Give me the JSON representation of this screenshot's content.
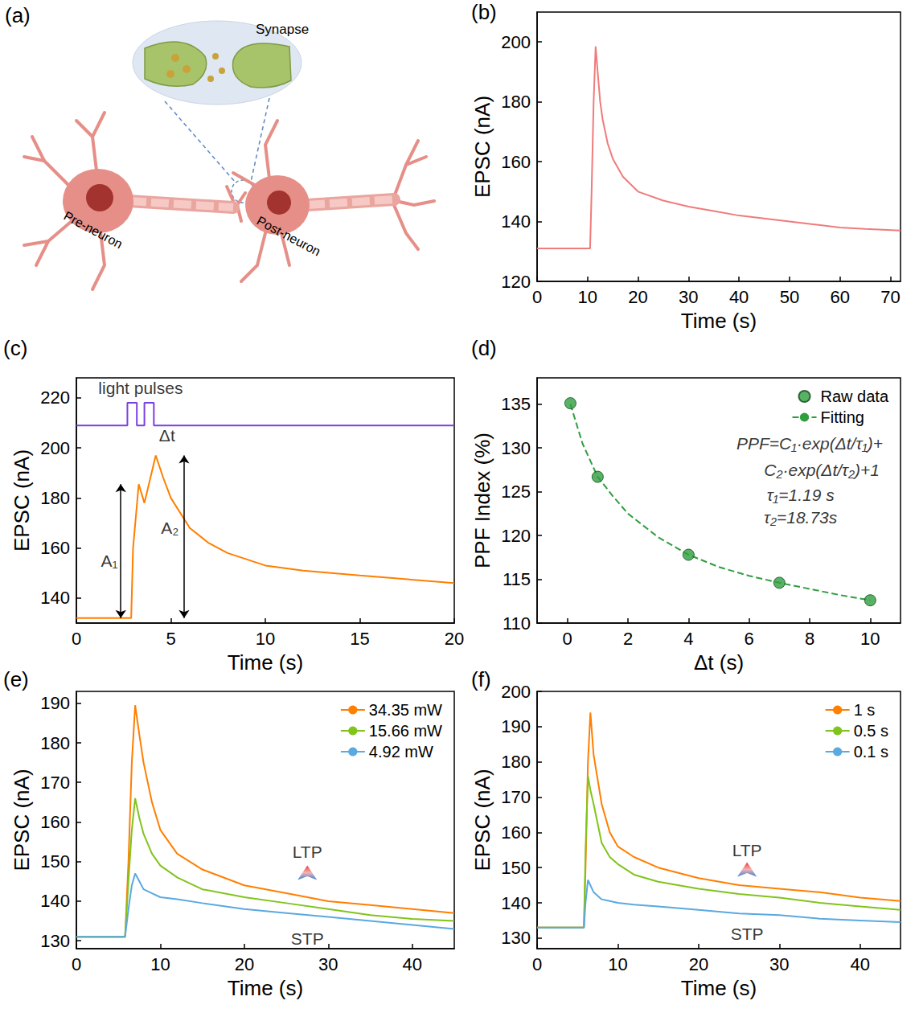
{
  "diagram": {
    "panel_label": "(a)",
    "labels": {
      "synapse": "Synapse",
      "pre": "Pre-neuron",
      "post": "Post-neuron"
    }
  },
  "chart_data": [
    {
      "panel_label": "(b)",
      "type": "line",
      "x_label": "Time (s)",
      "y_label": "EPSC (nA)",
      "xlim": [
        0,
        72
      ],
      "xticks": [
        0,
        10,
        20,
        30,
        40,
        50,
        60,
        70
      ],
      "ylim": [
        120,
        210
      ],
      "yticks": [
        120,
        140,
        160,
        180,
        200
      ],
      "grid": false,
      "series": [
        {
          "color": "#f07b7b",
          "x": [
            0,
            5,
            10,
            10.5,
            10.8,
            11.2,
            11.6,
            12,
            12.5,
            13,
            14,
            15,
            17,
            20,
            25,
            30,
            35,
            40,
            45,
            50,
            55,
            60,
            65,
            72
          ],
          "values": [
            131,
            131,
            131,
            131,
            150,
            180,
            198.5,
            190,
            180,
            174,
            166,
            161,
            155,
            150,
            147,
            145,
            143.5,
            142,
            141,
            140,
            139,
            138,
            137.5,
            137
          ]
        }
      ]
    },
    {
      "panel_label": "(c)",
      "type": "line",
      "x_label": "Time (s)",
      "y_label": "EPSC (nA)",
      "xlim": [
        0,
        20
      ],
      "xticks": [
        0,
        5,
        10,
        15,
        20
      ],
      "ylim": [
        130,
        228
      ],
      "yticks": [
        140,
        160,
        180,
        200,
        220
      ],
      "grid": false,
      "series": [
        {
          "color": "#ff7f00",
          "x": [
            0,
            2.9,
            3.0,
            3.3,
            3.6,
            4.2,
            4.6,
            5,
            6,
            7,
            8,
            10,
            12,
            15,
            20
          ],
          "values": [
            132,
            132,
            160,
            185.5,
            178,
            197,
            188,
            180,
            168,
            162,
            158,
            153,
            151,
            149,
            146
          ]
        },
        {
          "color": "#7b40e0",
          "x": [
            0,
            2.7,
            2.7,
            3.2,
            3.2,
            3.6,
            3.6,
            4.1,
            4.1,
            20
          ],
          "values": [
            209,
            209,
            218,
            218,
            209,
            209,
            218,
            218,
            209,
            209
          ]
        }
      ],
      "annotations": [
        {
          "text": "light pulses",
          "x": 3.4,
          "y": 224
        },
        {
          "text": "Δt",
          "x": 4.8,
          "y": 205
        },
        {
          "text": "A₁",
          "x": 1.75,
          "y": 155
        },
        {
          "text": "A₂",
          "x": 4.95,
          "y": 168
        }
      ],
      "arrows": [
        {
          "x": 2.35,
          "from": 132,
          "to": 185.5
        },
        {
          "x": 5.7,
          "from": 132,
          "to": 197
        }
      ]
    },
    {
      "panel_label": "(d)",
      "type": "scatter",
      "x_label": "Δt (s)",
      "y_label": "PPF Index (%)",
      "xlim": [
        -1,
        11
      ],
      "xticks": [
        0,
        2,
        4,
        6,
        8,
        10
      ],
      "ylim": [
        110,
        138
      ],
      "yticks": [
        110,
        115,
        120,
        125,
        130,
        135
      ],
      "grid": false,
      "legend": "upper right",
      "series": [
        {
          "name": "Raw data",
          "type": "scatter",
          "marker": "circle",
          "color": "#2e9e3e",
          "x": [
            0.1,
            1,
            4,
            7,
            10
          ],
          "values": [
            135.1,
            126.7,
            117.8,
            114.6,
            112.6
          ]
        },
        {
          "name": "Fitting",
          "type": "line",
          "line_style": "dashed",
          "color": "#2e9e3e",
          "x": [
            0.1,
            0.5,
            1,
            1.5,
            2,
            3,
            4,
            5,
            6,
            7,
            8,
            9,
            10
          ],
          "values": [
            135,
            130.5,
            126.7,
            124.5,
            122.5,
            119.8,
            117.8,
            116.4,
            115.4,
            114.6,
            113.9,
            113.2,
            112.6
          ]
        }
      ],
      "annotations": [
        {
          "text": "PPF=C₁·exp(Δt/τ₁)+",
          "x": 8.0,
          "y": 130.5
        },
        {
          "text": "C₂·exp(Δt/τ₂)+1",
          "x": 8.4,
          "y": 127.5
        },
        {
          "text": "τ₁=1.19 s",
          "x": 7.7,
          "y": 124.6
        },
        {
          "text": "τ₂=18.73s",
          "x": 7.7,
          "y": 122.1
        }
      ]
    },
    {
      "panel_label": "(e)",
      "type": "line",
      "x_label": "Time (s)",
      "y_label": "EPSC (nA)",
      "xlim": [
        0,
        45
      ],
      "xticks": [
        0,
        10,
        20,
        30,
        40
      ],
      "ylim": [
        128,
        193
      ],
      "yticks": [
        130,
        140,
        150,
        160,
        170,
        180,
        190
      ],
      "grid": false,
      "legend": "upper right",
      "x": [
        0,
        5.8,
        6.2,
        6.6,
        7,
        7.5,
        8,
        9,
        10,
        12,
        15,
        20,
        25,
        30,
        35,
        40,
        45
      ],
      "series": [
        {
          "name": "34.35 mW",
          "color": "#ff7f00",
          "values": [
            131,
            131,
            150,
            175,
            189.5,
            182,
            175,
            165,
            158,
            152,
            148,
            144,
            142,
            140,
            139,
            138,
            137
          ]
        },
        {
          "name": "15.66 mW",
          "color": "#80c41c",
          "values": [
            131,
            131,
            145,
            158,
            166,
            161,
            157,
            152,
            149,
            146,
            143,
            141,
            139.5,
            138,
            136.5,
            135.5,
            135
          ]
        },
        {
          "name": "4.92 mW",
          "color": "#5aa9e0",
          "values": [
            131,
            131,
            138,
            144,
            147,
            145,
            143,
            142,
            141,
            140.5,
            139.5,
            138,
            137,
            136,
            135,
            134,
            133
          ]
        }
      ],
      "annotations": [
        {
          "text": "LTP",
          "x": 27.5,
          "y": 152.5
        },
        {
          "text": "STP",
          "x": 27.5,
          "y": 130.6
        }
      ],
      "arrows": [
        {
          "x": 27.5,
          "from": 133,
          "to": 149
        }
      ]
    },
    {
      "panel_label": "(f)",
      "type": "line",
      "x_label": "Time (s)",
      "y_label": "EPSC (nA)",
      "xlim": [
        0,
        45
      ],
      "xticks": [
        0,
        10,
        20,
        30,
        40
      ],
      "ylim": [
        127,
        200
      ],
      "yticks": [
        130,
        140,
        150,
        160,
        170,
        180,
        190,
        200
      ],
      "grid": false,
      "legend": "upper right",
      "x": [
        0,
        5.8,
        6.0,
        6.3,
        6.6,
        7,
        8,
        9,
        10,
        12,
        15,
        20,
        25,
        30,
        35,
        40,
        45
      ],
      "series": [
        {
          "name": "1 s",
          "color": "#ff7f00",
          "values": [
            133,
            133,
            150,
            180,
            194,
            182,
            168,
            160,
            156,
            153,
            150,
            147,
            145,
            144,
            143,
            141.5,
            140.5
          ]
        },
        {
          "name": "0.5 s",
          "color": "#80c41c",
          "values": [
            133,
            133,
            155,
            176,
            172,
            168,
            157,
            153,
            151,
            148,
            146,
            144,
            142.5,
            141.5,
            140,
            139,
            138
          ]
        },
        {
          "name": "0.1 s",
          "color": "#5aa9e0",
          "values": [
            133,
            133,
            140,
            146.5,
            145,
            143,
            141,
            140.5,
            140,
            139.5,
            139,
            138,
            137,
            136.5,
            135.5,
            135,
            134.5
          ]
        }
      ],
      "annotations": [
        {
          "text": "LTP",
          "x": 26,
          "y": 155
        },
        {
          "text": "STP",
          "x": 26,
          "y": 131.2
        }
      ],
      "arrows": [
        {
          "x": 26,
          "from": 134,
          "to": 151.5
        }
      ]
    }
  ]
}
